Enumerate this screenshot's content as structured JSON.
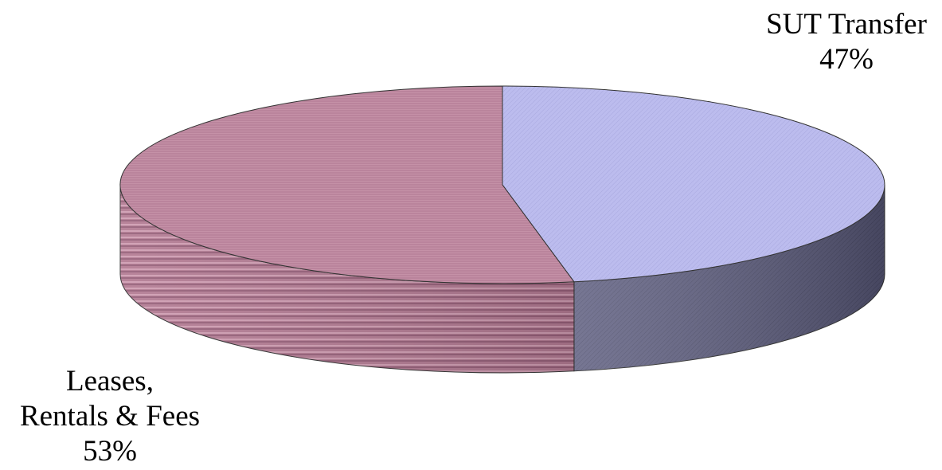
{
  "chart_data": {
    "type": "pie",
    "style": "3d",
    "categories": [
      "SUT Transfer",
      "Leases, Rentals & Fees"
    ],
    "values": [
      47,
      53
    ],
    "unit": "%",
    "labels": [
      {
        "lines": [
          "SUT Transfer",
          "47%"
        ]
      },
      {
        "lines": [
          "Leases,",
          "Rentals & Fees",
          "53%"
        ]
      }
    ],
    "colors": {
      "sut_top": "#bcbcee",
      "sut_side": "#5a5a78",
      "leases_top": "#c08aa0",
      "leases_side": "#a06a80"
    }
  }
}
